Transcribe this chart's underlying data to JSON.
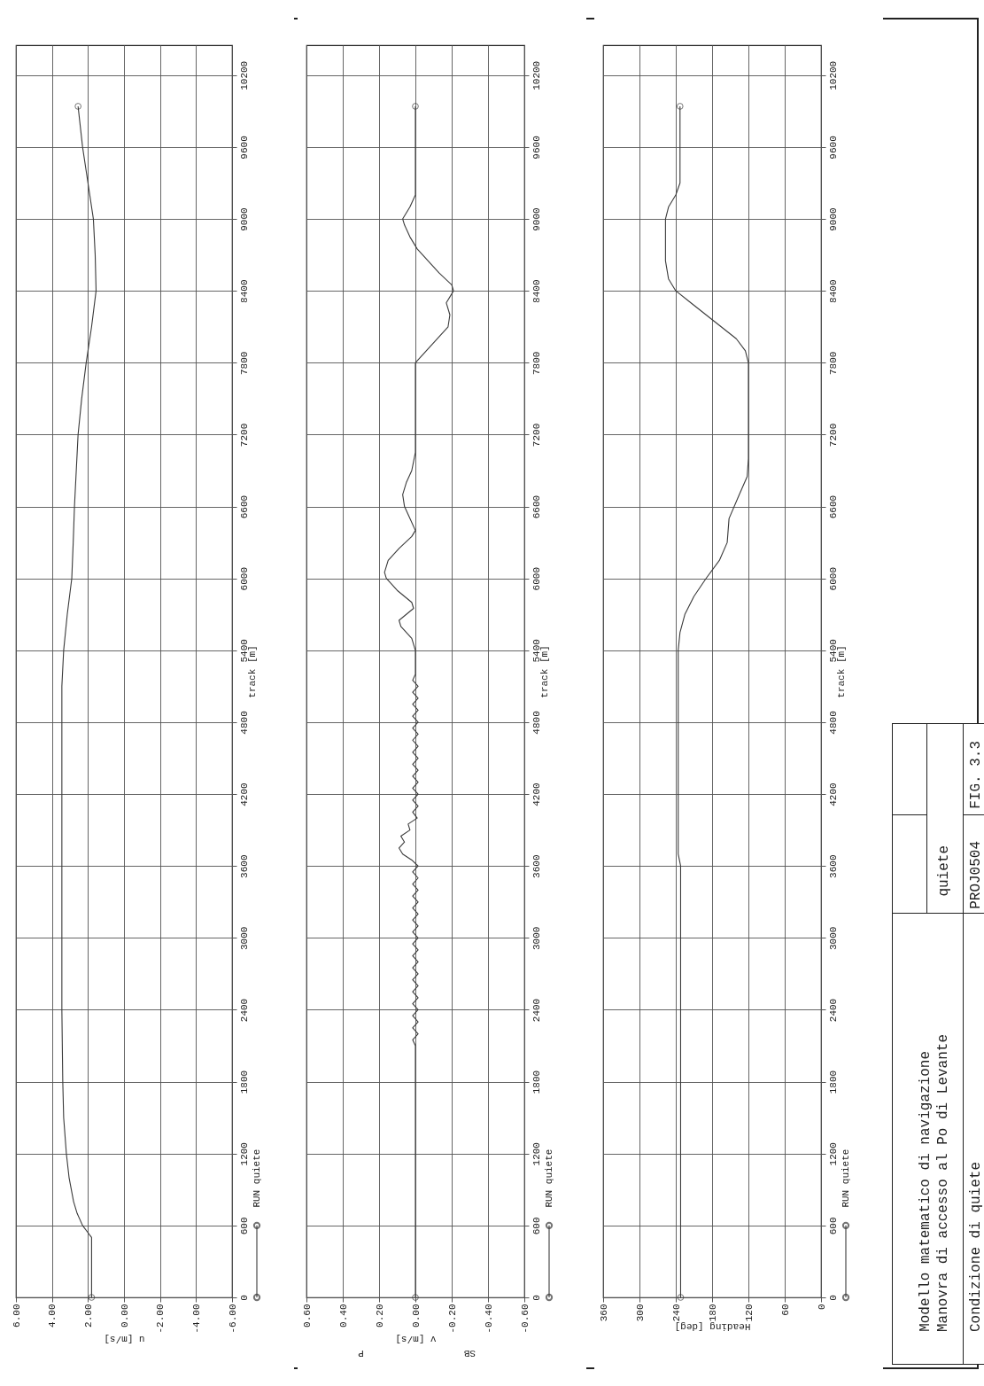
{
  "chart_data": [
    {
      "type": "line",
      "xlabel": "u [m/s]",
      "ylabel": "track [m]",
      "xlim": [
        6,
        -6
      ],
      "ylim": [
        0,
        10450
      ],
      "xticks": [
        {
          "value": 6,
          "label": "6.00"
        },
        {
          "value": 4,
          "label": "4.00"
        },
        {
          "value": 2,
          "label": "2.00"
        },
        {
          "value": 0,
          "label": "0.00"
        },
        {
          "value": -2,
          "label": "-2.00"
        },
        {
          "value": -4,
          "label": "-4.00"
        },
        {
          "value": -6,
          "label": "-6.00"
        }
      ],
      "yticks": [
        0,
        600,
        1200,
        1800,
        2400,
        3000,
        3600,
        4200,
        4800,
        5400,
        6000,
        6600,
        7200,
        7800,
        8400,
        9000,
        9600,
        10200
      ],
      "grid": true,
      "legend": "bottom right",
      "line_style": "solid",
      "series": [
        {
          "name": "RUN quiete",
          "color": "#3a3a3a",
          "x": [
            1.8,
            1.8,
            1.8,
            1.8,
            1.8,
            1.8,
            2.0,
            2.3,
            2.6,
            2.8,
            3.05,
            3.2,
            3.35,
            3.4,
            3.45,
            3.45,
            3.45,
            3.45,
            3.45,
            3.45,
            3.35,
            3.15,
            2.9,
            2.82,
            2.75,
            2.65,
            2.55,
            2.35,
            2.1,
            1.8,
            1.55,
            1.6,
            1.7,
            2.0,
            2.3,
            2.55
          ],
          "values": [
            0,
            100,
            200,
            300,
            400,
            500,
            540,
            600,
            700,
            800,
            1000,
            1200,
            1500,
            1800,
            2400,
            3000,
            3600,
            4200,
            4800,
            5100,
            5400,
            5700,
            6000,
            6300,
            6600,
            6900,
            7200,
            7500,
            7800,
            8100,
            8400,
            8700,
            9000,
            9300,
            9600,
            9940
          ]
        }
      ]
    },
    {
      "type": "line",
      "xlabel": "v [m/s]",
      "ylabel": "track [m]",
      "xlim": [
        0.6,
        -0.6
      ],
      "ylim": [
        0,
        10450
      ],
      "xticks": [
        {
          "value": 0.6,
          "label": "0.60"
        },
        {
          "value": 0.4,
          "label": "0.40"
        },
        {
          "value": 0.2,
          "label": "0.20"
        },
        {
          "value": 0,
          "label": "0.00"
        },
        {
          "value": -0.2,
          "label": "-0.20"
        },
        {
          "value": -0.4,
          "label": "-0.40"
        },
        {
          "value": -0.6,
          "label": "-0.60"
        }
      ],
      "yticks": [
        0,
        600,
        1200,
        1800,
        2400,
        3000,
        3600,
        4200,
        4800,
        5400,
        6000,
        6600,
        7200,
        7800,
        8400,
        9000,
        9600,
        10200
      ],
      "annotations": [
        "P",
        "SB"
      ],
      "grid": true,
      "legend": "bottom right",
      "line_style": "solid",
      "series": [
        {
          "name": "RUN quiete",
          "color": "#3a3a3a",
          "x": [
            0,
            0,
            0.015,
            -0.015,
            0.015,
            -0.015,
            0.015,
            -0.015,
            0.015,
            -0.015,
            0.015,
            -0.015,
            0.015,
            -0.015,
            0.015,
            -0.015,
            0.015,
            -0.015,
            0.015,
            -0.015,
            0.015,
            -0.015,
            0.015,
            -0.015,
            0.015,
            -0.015,
            0.015,
            -0.015,
            0.015,
            -0.015,
            0.015,
            -0.015,
            0.02,
            0.07,
            0.09,
            0.06,
            0.08,
            0.03,
            0.04,
            -0.01,
            0.015,
            -0.015,
            0.015,
            -0.015,
            0.015,
            -0.015,
            0.015,
            -0.015,
            0.015,
            -0.015,
            0.015,
            -0.015,
            0.015,
            -0.015,
            0.015,
            -0.015,
            0.015,
            -0.015,
            0.015,
            -0.015,
            0.015,
            -0.015,
            0.015,
            0,
            0,
            0.02,
            0.08,
            0.09,
            0.05,
            0.01,
            0.02,
            0.1,
            0.16,
            0.17,
            0.15,
            0.09,
            0.02,
            0,
            0.03,
            0.06,
            0.07,
            0.05,
            0.02,
            0,
            0,
            -0.06,
            -0.12,
            -0.18,
            -0.19,
            -0.17,
            -0.21,
            -0.2,
            -0.13,
            -0.07,
            -0.01,
            0.03,
            0.06,
            0.07,
            0.03,
            0,
            0,
            0
          ],
          "values": [
            0,
            2100,
            2150,
            2200,
            2250,
            2300,
            2350,
            2400,
            2450,
            2500,
            2550,
            2600,
            2650,
            2700,
            2750,
            2800,
            2850,
            2900,
            2950,
            3000,
            3050,
            3100,
            3150,
            3200,
            3250,
            3300,
            3350,
            3400,
            3450,
            3500,
            3550,
            3600,
            3650,
            3700,
            3750,
            3800,
            3850,
            3900,
            3950,
            4000,
            4050,
            4100,
            4150,
            4200,
            4250,
            4300,
            4350,
            4400,
            4450,
            4500,
            4550,
            4600,
            4650,
            4700,
            4750,
            4800,
            4850,
            4900,
            4950,
            5000,
            5050,
            5100,
            5150,
            5200,
            5400,
            5500,
            5600,
            5650,
            5700,
            5750,
            5800,
            5900,
            6000,
            6050,
            6150,
            6250,
            6350,
            6400,
            6500,
            6600,
            6700,
            6800,
            6900,
            7050,
            7800,
            7900,
            8000,
            8100,
            8200,
            8300,
            8400,
            8450,
            8550,
            8650,
            8750,
            8850,
            8950,
            9000,
            9100,
            9200,
            9600,
            9940
          ]
        }
      ]
    },
    {
      "type": "line",
      "xlabel": "Heading [deg]",
      "ylabel": "track [m]",
      "xlim": [
        360,
        0
      ],
      "ylim": [
        0,
        10450
      ],
      "xticks": [
        360,
        300,
        240,
        180,
        120,
        60,
        0
      ],
      "yticks": [
        0,
        600,
        1200,
        1800,
        2400,
        3000,
        3600,
        4200,
        4800,
        5400,
        6000,
        6600,
        7200,
        7800,
        8400,
        9000,
        9600,
        10200
      ],
      "grid": true,
      "legend": "bottom right",
      "line_style": "solid",
      "series": [
        {
          "name": "RUN quiete",
          "color": "#3a3a3a",
          "x": [
            232,
            232,
            232,
            232,
            232,
            236,
            236,
            236,
            233,
            225,
            210,
            190,
            168,
            155,
            152,
            135,
            122,
            120,
            120,
            125,
            140,
            165,
            190,
            215,
            240,
            252,
            257,
            257,
            252,
            240,
            233,
            233,
            233
          ],
          "values": [
            0,
            1000,
            2000,
            3000,
            3600,
            3700,
            4500,
            5400,
            5550,
            5700,
            5850,
            6000,
            6150,
            6300,
            6500,
            6700,
            6850,
            7000,
            7800,
            7900,
            8000,
            8100,
            8200,
            8300,
            8400,
            8500,
            8650,
            9000,
            9100,
            9200,
            9300,
            9600,
            9940
          ]
        }
      ]
    },
    {
      "type": "other",
      "title": "Modello matematico di navigazione",
      "subtitle": "Manovra di accesso al Po di Levante",
      "annotations": [
        "quiete",
        "Condizione di quiete",
        "PROJ0504",
        "FIG. 3.3"
      ]
    }
  ]
}
